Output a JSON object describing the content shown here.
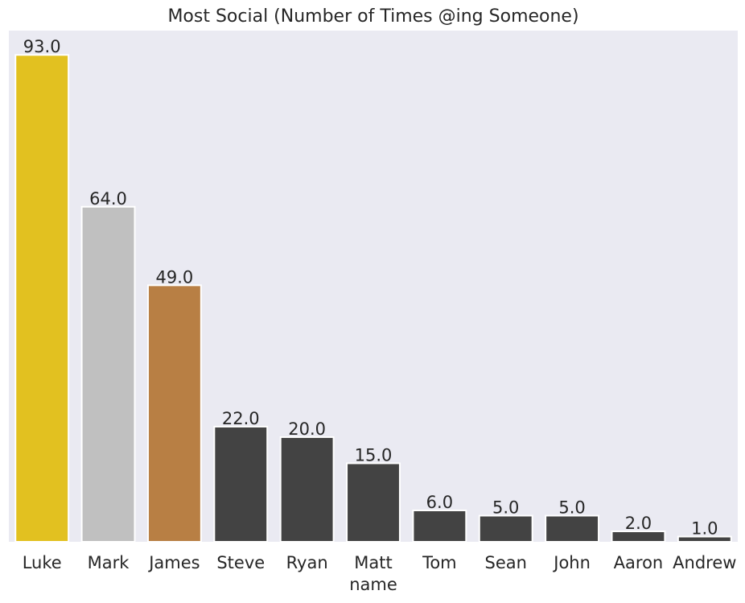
{
  "chart_data": {
    "type": "bar",
    "title": "Most Social (Number of Times @ing Someone)",
    "xlabel": "name",
    "ylabel": "",
    "categories": [
      "Luke",
      "Mark",
      "James",
      "Steve",
      "Ryan",
      "Matt",
      "Tom",
      "Sean",
      "John",
      "Aaron",
      "Andrew"
    ],
    "values": [
      93.0,
      64.0,
      49.0,
      22.0,
      20.0,
      15.0,
      6.0,
      5.0,
      5.0,
      2.0,
      1.0
    ],
    "value_labels": [
      "93.0",
      "64.0",
      "49.0",
      "22.0",
      "20.0",
      "15.0",
      "6.0",
      "5.0",
      "5.0",
      "2.0",
      "1.0"
    ],
    "bar_colors": [
      "#e2c120",
      "#c0c0c0",
      "#b87f44",
      "#434343",
      "#434343",
      "#434343",
      "#434343",
      "#434343",
      "#434343",
      "#434343",
      "#434343"
    ],
    "ylim": [
      0,
      97.65
    ],
    "grid": false,
    "legend": "none",
    "background_color": "#eaeaf2",
    "bar_edge_color": "#ffffff"
  }
}
